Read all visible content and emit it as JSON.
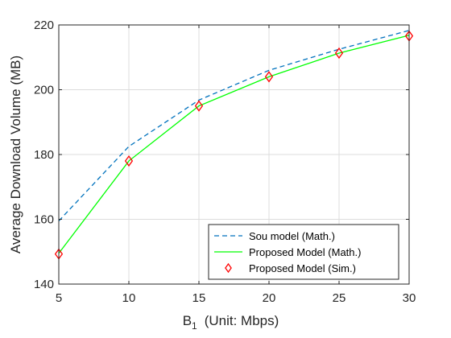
{
  "chart_data": {
    "type": "line",
    "title": "",
    "xlabel_base": "B",
    "xlabel_sub": "1",
    "xlabel_rest": "(Unit: Mbps)",
    "ylabel": "Average Download Volume (MB)",
    "xlim": [
      5,
      30
    ],
    "ylim": [
      140,
      220
    ],
    "xticks": [
      "5",
      "10",
      "15",
      "20",
      "25",
      "30"
    ],
    "yticks": [
      "140",
      "160",
      "180",
      "200",
      "220"
    ],
    "grid": true,
    "legend_position": "bottom-right",
    "x": [
      5,
      10,
      15,
      20,
      25,
      30
    ],
    "series": [
      {
        "name": "Sou model (Math.)",
        "values": [
          159.5,
          182.5,
          196.8,
          206.0,
          212.5,
          218.3
        ],
        "color": "#0072BD",
        "style": "dashed",
        "marker": "none"
      },
      {
        "name": "Proposed Model (Math.)",
        "values": [
          149.5,
          178.0,
          195.0,
          204.0,
          211.3,
          216.8
        ],
        "color": "#00FF00",
        "style": "solid",
        "marker": "none"
      },
      {
        "name": "Proposed Model (Sim.)",
        "values": [
          149.3,
          178.0,
          195.0,
          204.0,
          211.3,
          216.6
        ],
        "color": "#FF0000",
        "style": "none",
        "marker": "diamond"
      }
    ]
  }
}
